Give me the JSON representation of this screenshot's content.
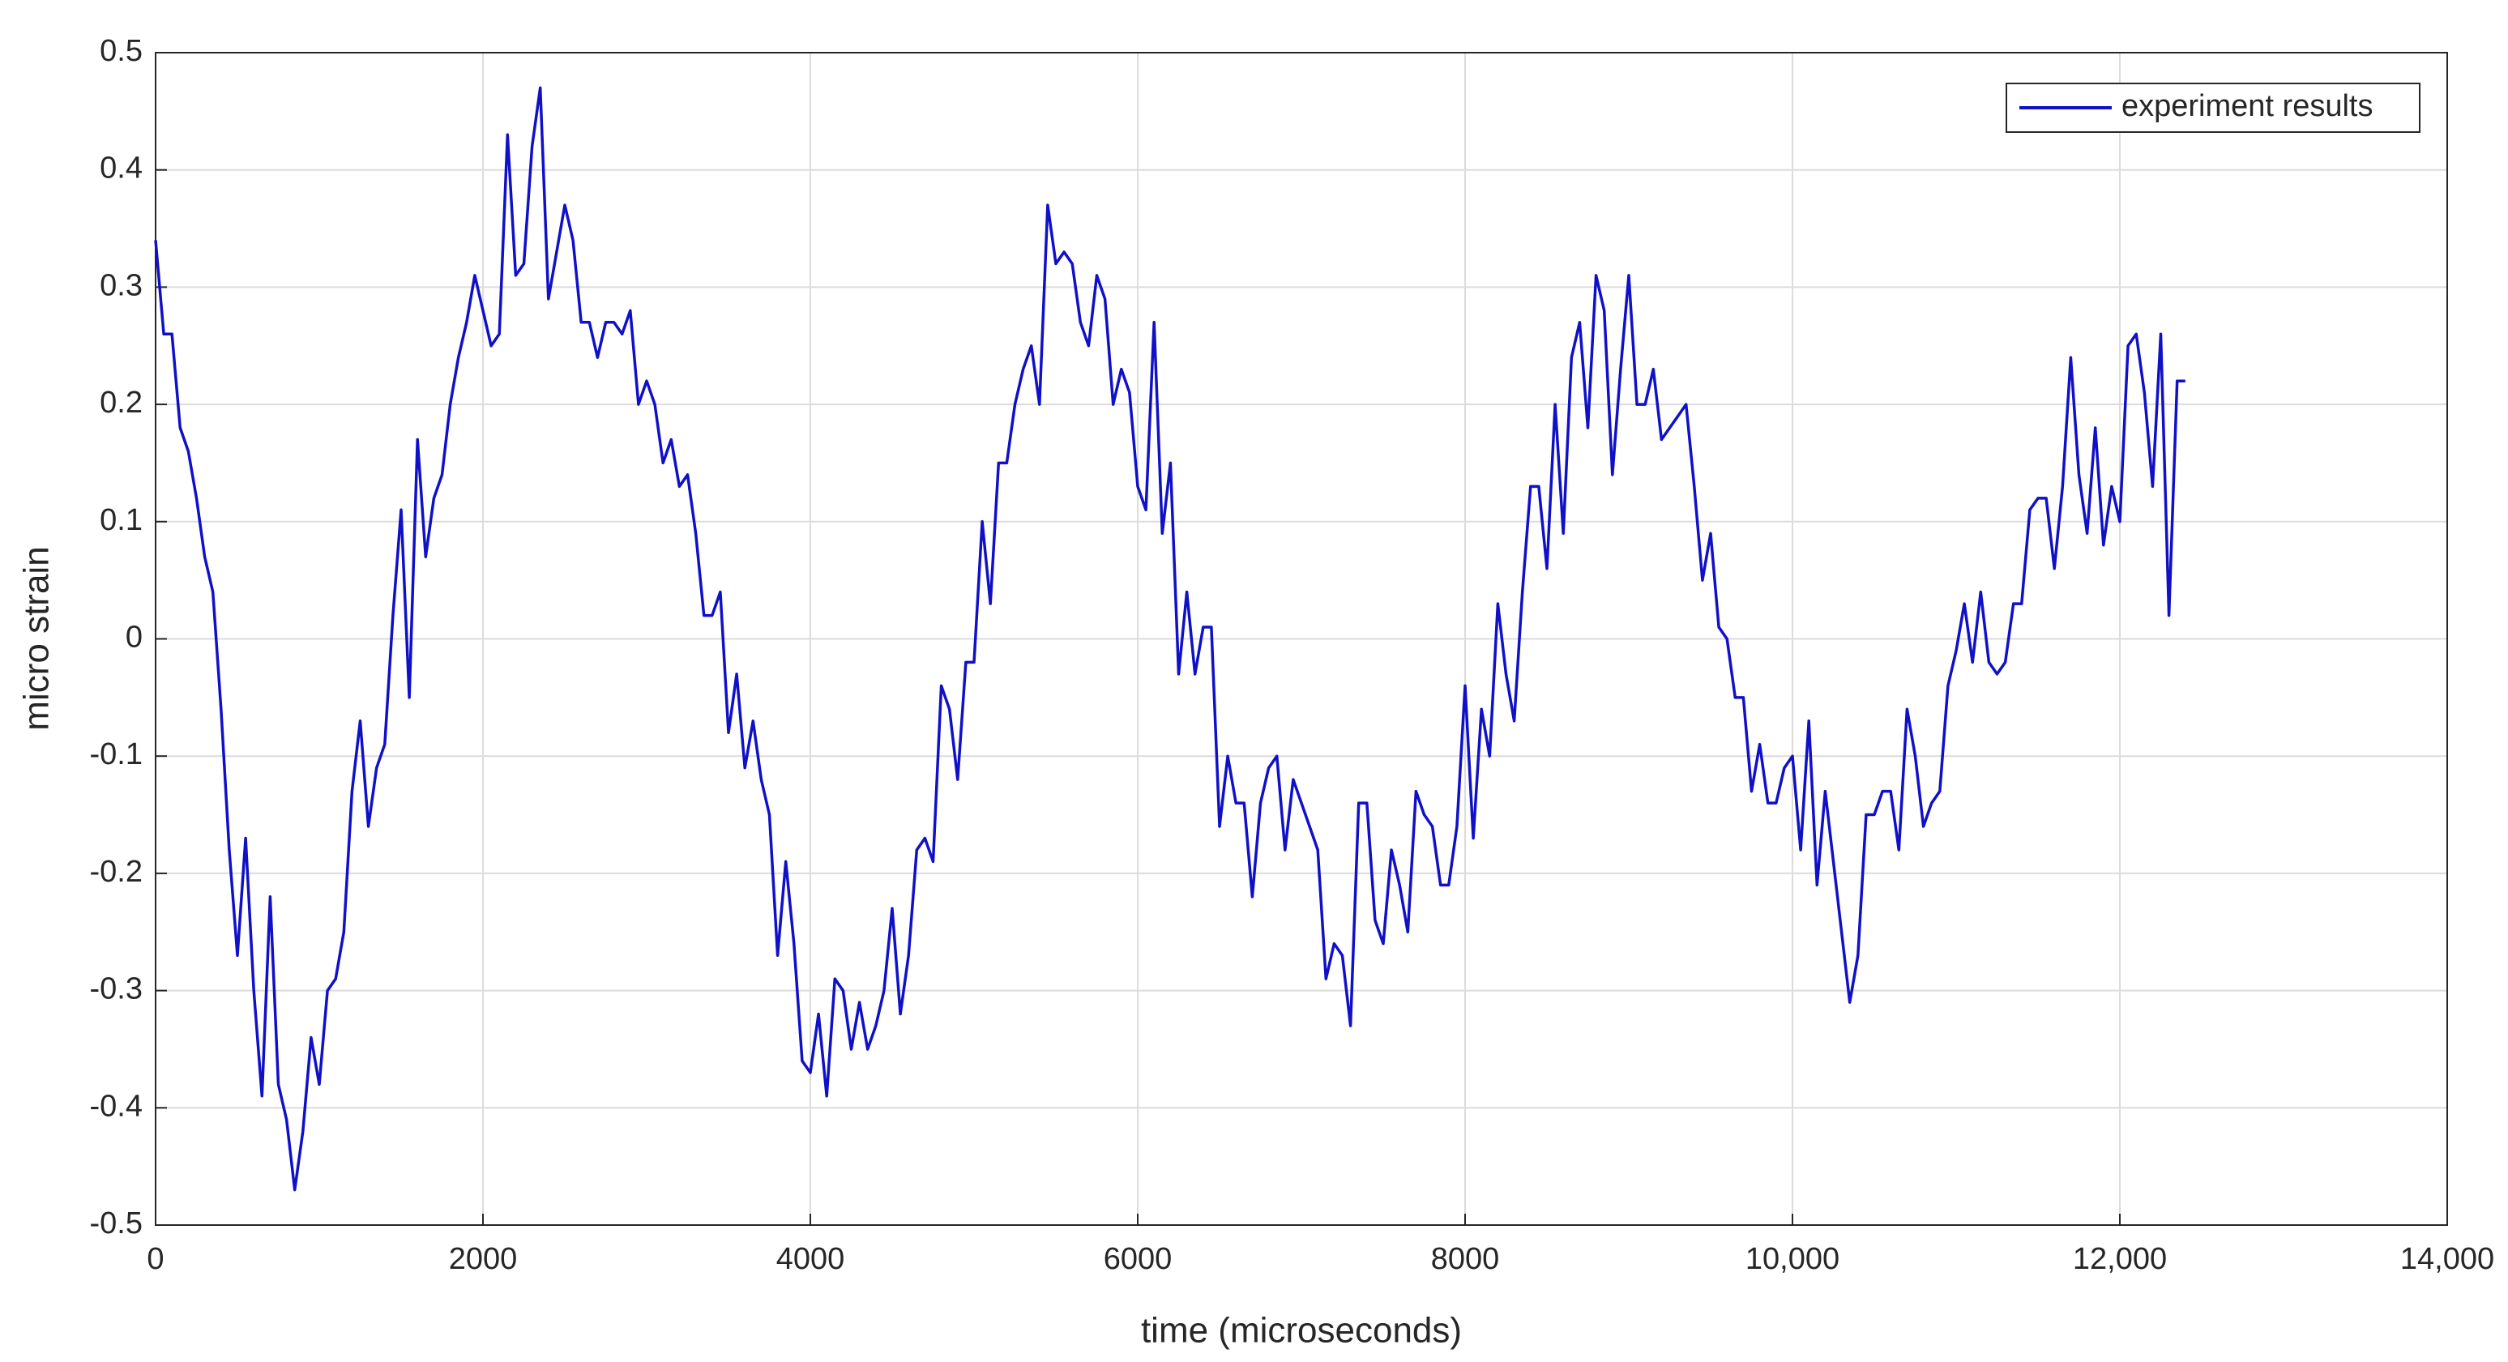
{
  "chart_data": {
    "type": "line",
    "x_label": "time (microseconds)",
    "y_label": "micro strain",
    "x": [
      0,
      50,
      100,
      150,
      200,
      250,
      300,
      350,
      400,
      450,
      500,
      550,
      600,
      650,
      700,
      750,
      800,
      850,
      900,
      950,
      1000,
      1050,
      1100,
      1150,
      1200,
      1250,
      1300,
      1350,
      1400,
      1450,
      1500,
      1550,
      1600,
      1650,
      1700,
      1750,
      1800,
      1850,
      1900,
      1950,
      2000,
      2050,
      2100,
      2150,
      2200,
      2250,
      2300,
      2350,
      2400,
      2450,
      2500,
      2550,
      2600,
      2650,
      2700,
      2750,
      2800,
      2850,
      2900,
      2950,
      3000,
      3050,
      3100,
      3150,
      3200,
      3250,
      3300,
      3350,
      3400,
      3450,
      3500,
      3550,
      3600,
      3650,
      3700,
      3750,
      3800,
      3850,
      3900,
      3950,
      4000,
      4050,
      4100,
      4150,
      4200,
      4250,
      4300,
      4350,
      4400,
      4450,
      4500,
      4550,
      4600,
      4650,
      4700,
      4750,
      4800,
      4850,
      4900,
      4950,
      5000,
      5050,
      5100,
      5150,
      5200,
      5250,
      5300,
      5350,
      5400,
      5450,
      5500,
      5550,
      5600,
      5650,
      5700,
      5750,
      5800,
      5850,
      5900,
      5950,
      6000,
      6050,
      6100,
      6150,
      6200,
      6250,
      6300,
      6350,
      6400,
      6450,
      6500,
      6550,
      6600,
      6650,
      6700,
      6750,
      6800,
      6850,
      6900,
      6950,
      7000,
      7050,
      7100,
      7150,
      7200,
      7250,
      7300,
      7350,
      7400,
      7450,
      7500,
      7550,
      7600,
      7650,
      7700,
      7750,
      7800,
      7850,
      7900,
      7950,
      8000,
      8050,
      8100,
      8150,
      8200,
      8250,
      8300,
      8350,
      8400,
      8450,
      8500,
      8550,
      8600,
      8650,
      8700,
      8750,
      8800,
      8850,
      8900,
      8950,
      9000,
      9050,
      9100,
      9150,
      9200,
      9250,
      9300,
      9350,
      9400,
      9450,
      9500,
      9550,
      9600,
      9650,
      9700,
      9750,
      9800,
      9850,
      9900,
      9950,
      10000,
      10050,
      10100,
      10150,
      10200,
      10250,
      10300,
      10350,
      10400,
      10450,
      10500,
      10550,
      10600,
      10650,
      10700,
      10750,
      10800,
      10850,
      10900,
      10950,
      11000,
      11050,
      11100,
      11150,
      11200,
      11250,
      11300,
      11350,
      11400,
      11450,
      11500,
      11550,
      11600,
      11650,
      11700,
      11750,
      11800,
      11850,
      11900,
      11950,
      12000,
      12050,
      12100,
      12150,
      12200,
      12250,
      12300,
      12350,
      12400
    ],
    "series": [
      {
        "name": "experiment results",
        "color": "#1010c8",
        "values": [
          0.34,
          0.26,
          0.26,
          0.18,
          0.16,
          0.12,
          0.07,
          0.04,
          -0.06,
          -0.18,
          -0.27,
          -0.17,
          -0.3,
          -0.39,
          -0.22,
          -0.38,
          -0.41,
          -0.47,
          -0.42,
          -0.34,
          -0.38,
          -0.3,
          -0.29,
          -0.25,
          -0.13,
          -0.07,
          -0.16,
          -0.11,
          -0.09,
          0.02,
          0.11,
          -0.05,
          0.17,
          0.07,
          0.12,
          0.14,
          0.2,
          0.24,
          0.27,
          0.31,
          0.28,
          0.25,
          0.26,
          0.43,
          0.31,
          0.32,
          0.42,
          0.47,
          0.29,
          0.33,
          0.37,
          0.34,
          0.27,
          0.27,
          0.24,
          0.27,
          0.27,
          0.26,
          0.28,
          0.2,
          0.22,
          0.2,
          0.15,
          0.17,
          0.13,
          0.14,
          0.09,
          0.02,
          0.02,
          0.04,
          -0.08,
          -0.03,
          -0.11,
          -0.07,
          -0.12,
          -0.15,
          -0.27,
          -0.19,
          -0.26,
          -0.36,
          -0.37,
          -0.32,
          -0.39,
          -0.29,
          -0.3,
          -0.35,
          -0.31,
          -0.35,
          -0.33,
          -0.3,
          -0.23,
          -0.32,
          -0.27,
          -0.18,
          -0.17,
          -0.19,
          -0.04,
          -0.06,
          -0.12,
          -0.02,
          -0.02,
          0.1,
          0.03,
          0.15,
          0.15,
          0.2,
          0.23,
          0.25,
          0.2,
          0.37,
          0.32,
          0.33,
          0.32,
          0.27,
          0.25,
          0.31,
          0.29,
          0.2,
          0.23,
          0.21,
          0.13,
          0.11,
          0.27,
          0.09,
          0.15,
          -0.03,
          0.04,
          -0.03,
          0.01,
          0.01,
          -0.16,
          -0.1,
          -0.14,
          -0.14,
          -0.22,
          -0.14,
          -0.11,
          -0.1,
          -0.18,
          -0.12,
          -0.14,
          -0.16,
          -0.18,
          -0.29,
          -0.26,
          -0.27,
          -0.33,
          -0.14,
          -0.14,
          -0.24,
          -0.26,
          -0.18,
          -0.21,
          -0.25,
          -0.13,
          -0.15,
          -0.16,
          -0.21,
          -0.21,
          -0.16,
          -0.04,
          -0.17,
          -0.06,
          -0.1,
          0.03,
          -0.03,
          -0.07,
          0.04,
          0.13,
          0.13,
          0.06,
          0.2,
          0.09,
          0.24,
          0.27,
          0.18,
          0.31,
          0.28,
          0.14,
          0.23,
          0.31,
          0.2,
          0.2,
          0.23,
          0.17,
          0.18,
          0.19,
          0.2,
          0.13,
          0.05,
          0.09,
          0.01,
          0.0,
          -0.05,
          -0.05,
          -0.13,
          -0.09,
          -0.14,
          -0.14,
          -0.11,
          -0.1,
          -0.18,
          -0.07,
          -0.21,
          -0.13,
          -0.19,
          -0.25,
          -0.31,
          -0.27,
          -0.15,
          -0.15,
          -0.13,
          -0.13,
          -0.18,
          -0.06,
          -0.1,
          -0.16,
          -0.14,
          -0.13,
          -0.04,
          -0.01,
          0.03,
          -0.02,
          0.04,
          -0.02,
          -0.03,
          -0.02,
          0.03,
          0.03,
          0.11,
          0.12,
          0.12,
          0.06,
          0.13,
          0.24,
          0.14,
          0.09,
          0.18,
          0.08,
          0.13,
          0.1,
          0.25,
          0.26,
          0.21,
          0.13,
          0.26,
          0.02,
          0.22,
          0.22
        ]
      }
    ],
    "xlim": [
      0,
      14000
    ],
    "xticks": [
      0,
      2000,
      4000,
      6000,
      8000,
      {
        "value": 10000,
        "label": "10,000"
      },
      {
        "value": 12000,
        "label": "12,000"
      },
      {
        "value": 14000,
        "label": "14,000"
      }
    ],
    "ylim": [
      -0.5,
      0.5
    ],
    "yticks": [
      -0.5,
      -0.4,
      -0.3,
      -0.2,
      -0.1,
      0,
      0.1,
      0.2,
      0.3,
      0.4,
      0.5
    ],
    "grid": true,
    "legend": "upper right"
  }
}
